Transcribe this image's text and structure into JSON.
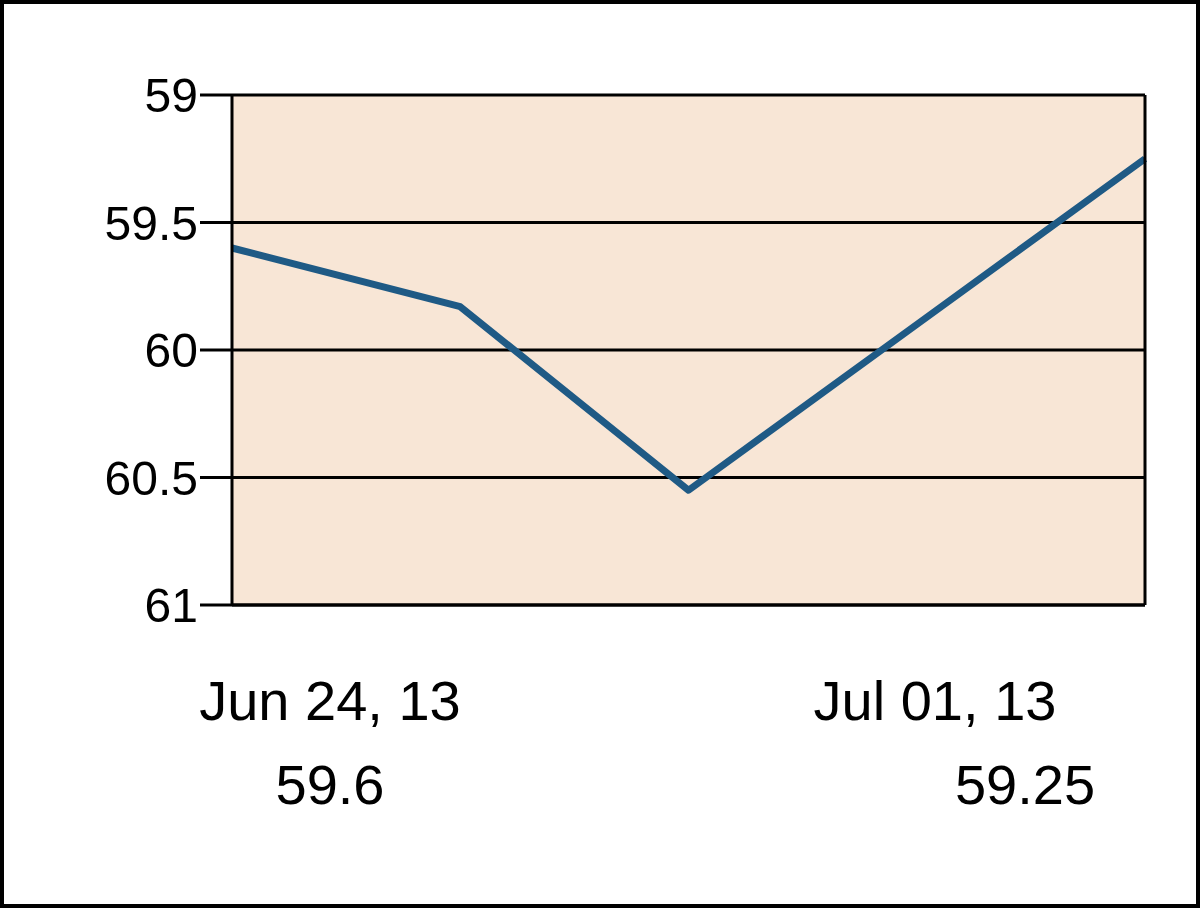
{
  "chart_data": {
    "type": "line",
    "categories": [
      null,
      null,
      null,
      null,
      null
    ],
    "series": [
      {
        "color": "#1f5a85",
        "values": [
          59.6,
          59.83,
          60.55,
          59.9,
          59.25
        ]
      }
    ],
    "ylim": [
      61,
      59
    ],
    "yticks": [
      59,
      59.5,
      60,
      60.5,
      61
    ],
    "grid": "y",
    "tick_labels": "y",
    "marker": "none",
    "line_style": "solid",
    "annotations": [
      "Jun 24, 13",
      "59.6",
      "Jul 01, 13",
      "59.25"
    ]
  }
}
